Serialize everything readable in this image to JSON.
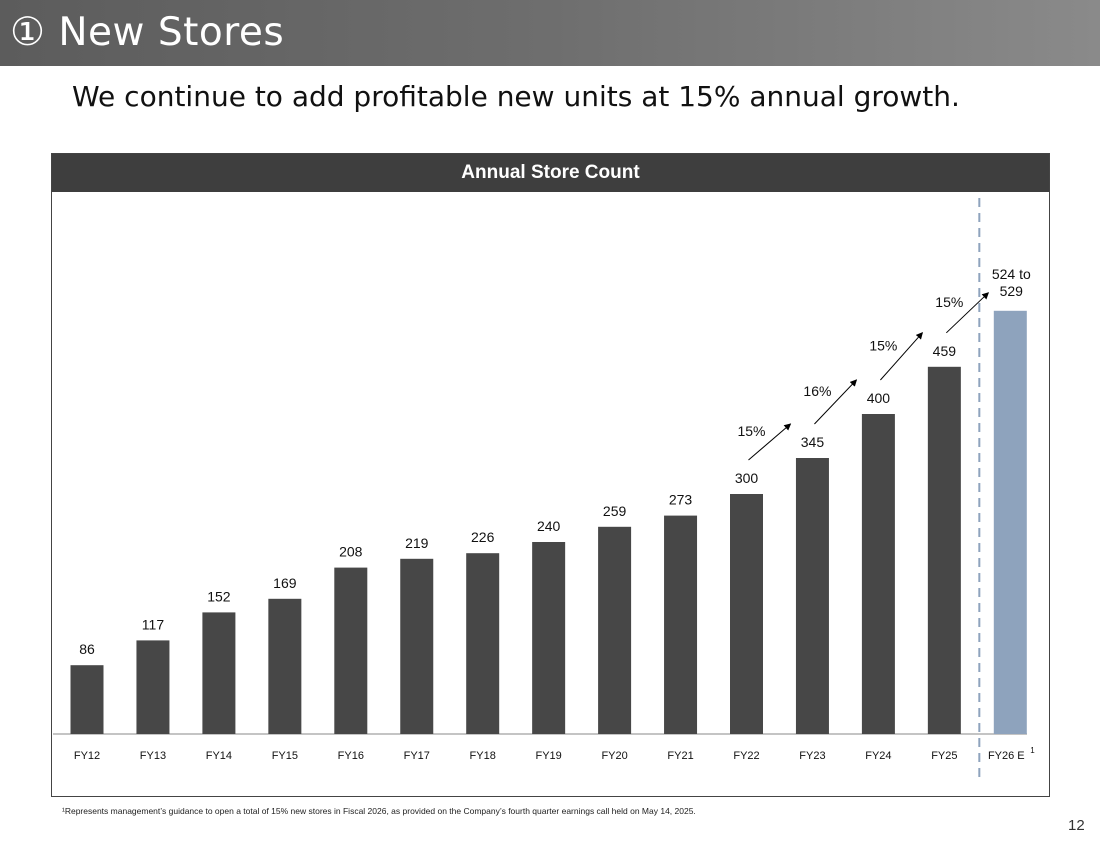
{
  "header": {
    "title": "① New Stores"
  },
  "subtitle": "We continue to add profitable new units at 15% annual growth.",
  "panel": {
    "title": "Annual Store Count"
  },
  "chart_data": {
    "type": "bar",
    "title": "Annual Store Count",
    "xlabel": "",
    "ylabel": "",
    "categories": [
      "FY12",
      "FY13",
      "FY14",
      "FY15",
      "FY16",
      "FY17",
      "FY18",
      "FY19",
      "FY20",
      "FY21",
      "FY22",
      "FY23",
      "FY24",
      "FY25",
      "FY26 E"
    ],
    "values": [
      86,
      117,
      152,
      169,
      208,
      219,
      226,
      240,
      259,
      273,
      300,
      345,
      400,
      459,
      529
    ],
    "data_labels": [
      "86",
      "117",
      "152",
      "169",
      "208",
      "219",
      "226",
      "240",
      "259",
      "273",
      "300",
      "345",
      "400",
      "459",
      "524 to 529"
    ],
    "estimate_superscript": "1",
    "ylim": [
      0,
      650
    ],
    "grid": false,
    "colors": {
      "actual": "#474747",
      "estimate": "#8ea3bd",
      "divider": "#8ea3bd"
    },
    "growth_annotations": [
      {
        "from": "FY22",
        "to": "FY23",
        "label": "15%"
      },
      {
        "from": "FY23",
        "to": "FY24",
        "label": "16%"
      },
      {
        "from": "FY24",
        "to": "FY25",
        "label": "15%"
      },
      {
        "from": "FY25",
        "to": "FY26 E",
        "label": "15%"
      }
    ]
  },
  "footnote": "¹Represents management’s guidance to open a total of 15% new stores in Fiscal 2026, as provided on the Company’s fourth quarter earnings call held on May 14, 2025.",
  "page_number": "12"
}
